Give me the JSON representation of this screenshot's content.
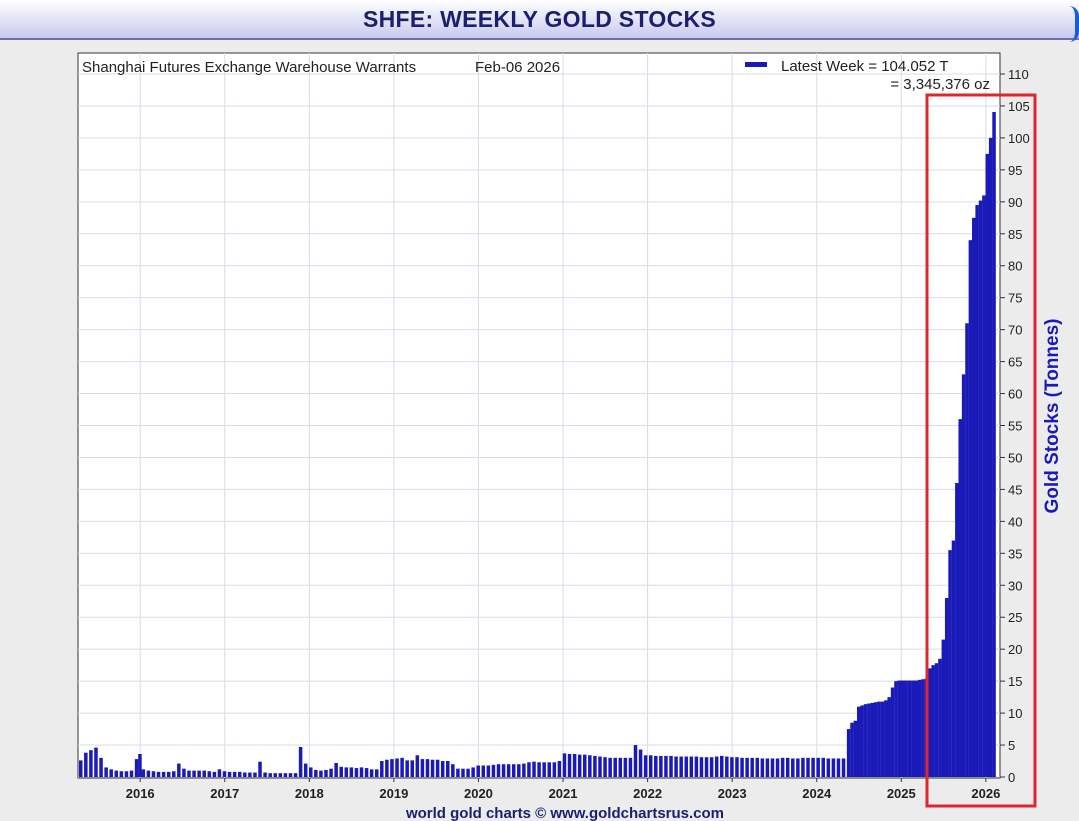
{
  "title": "SHFE: WEEKLY GOLD STOCKS",
  "subtitle": "Shanghai Futures Exchange Warehouse Warrants",
  "date": "Feb-06  2026",
  "legend": {
    "line1": "Latest Week = 104.052 T",
    "line2": "= 3,345,376 oz"
  },
  "footer": "world gold charts © www.goldchartsrus.com",
  "colors": {
    "bar": "#1a1ab8",
    "highlight": "#e0252d",
    "axis_text": "#222222",
    "ylabel": "#1a1ab8"
  },
  "chart_data": {
    "type": "bar",
    "ylabel": "Gold Stocks (Tonnes)",
    "xlabel": "",
    "ylim": [
      0,
      110
    ],
    "y_ticks": [
      0,
      5,
      10,
      15,
      20,
      25,
      30,
      35,
      40,
      45,
      50,
      55,
      60,
      65,
      70,
      75,
      80,
      85,
      90,
      95,
      100,
      105,
      110
    ],
    "x_ticks": [
      "2016",
      "2017",
      "2018",
      "2019",
      "2020",
      "2021",
      "2022",
      "2023",
      "2024",
      "2025",
      "2026"
    ],
    "x_range": [
      2015.3,
      2026.12
    ],
    "grid": true,
    "legend_position": "top-right",
    "series": [
      {
        "name": "Latest Week = 104.052 T",
        "points": [
          [
            2015.3,
            2.6
          ],
          [
            2015.36,
            3.8
          ],
          [
            2015.42,
            4.2
          ],
          [
            2015.48,
            4.6
          ],
          [
            2015.54,
            3.0
          ],
          [
            2015.6,
            1.5
          ],
          [
            2015.66,
            1.2
          ],
          [
            2015.72,
            1.0
          ],
          [
            2015.78,
            0.9
          ],
          [
            2015.84,
            0.9
          ],
          [
            2015.9,
            1.0
          ],
          [
            2015.96,
            2.8
          ],
          [
            2016.0,
            3.6
          ],
          [
            2016.04,
            1.2
          ],
          [
            2016.1,
            1.0
          ],
          [
            2016.16,
            0.9
          ],
          [
            2016.22,
            0.8
          ],
          [
            2016.28,
            0.8
          ],
          [
            2016.34,
            0.8
          ],
          [
            2016.4,
            0.9
          ],
          [
            2016.46,
            2.1
          ],
          [
            2016.52,
            1.3
          ],
          [
            2016.58,
            1.0
          ],
          [
            2016.64,
            1.0
          ],
          [
            2016.7,
            1.0
          ],
          [
            2016.76,
            1.0
          ],
          [
            2016.82,
            0.9
          ],
          [
            2016.88,
            0.8
          ],
          [
            2016.94,
            1.2
          ],
          [
            2017.0,
            0.9
          ],
          [
            2017.06,
            0.8
          ],
          [
            2017.12,
            0.8
          ],
          [
            2017.18,
            0.8
          ],
          [
            2017.24,
            0.7
          ],
          [
            2017.3,
            0.7
          ],
          [
            2017.36,
            0.7
          ],
          [
            2017.42,
            2.4
          ],
          [
            2017.48,
            0.7
          ],
          [
            2017.54,
            0.6
          ],
          [
            2017.6,
            0.6
          ],
          [
            2017.66,
            0.6
          ],
          [
            2017.72,
            0.6
          ],
          [
            2017.78,
            0.6
          ],
          [
            2017.84,
            0.6
          ],
          [
            2017.9,
            4.7
          ],
          [
            2017.96,
            2.1
          ],
          [
            2018.02,
            1.5
          ],
          [
            2018.08,
            1.1
          ],
          [
            2018.14,
            1.0
          ],
          [
            2018.2,
            1.1
          ],
          [
            2018.26,
            1.3
          ],
          [
            2018.32,
            2.2
          ],
          [
            2018.38,
            1.6
          ],
          [
            2018.44,
            1.5
          ],
          [
            2018.5,
            1.5
          ],
          [
            2018.56,
            1.4
          ],
          [
            2018.62,
            1.5
          ],
          [
            2018.68,
            1.4
          ],
          [
            2018.74,
            1.2
          ],
          [
            2018.8,
            1.2
          ],
          [
            2018.86,
            2.5
          ],
          [
            2018.92,
            2.7
          ],
          [
            2018.98,
            2.8
          ],
          [
            2019.04,
            2.9
          ],
          [
            2019.1,
            3.0
          ],
          [
            2019.16,
            2.6
          ],
          [
            2019.22,
            2.6
          ],
          [
            2019.28,
            3.4
          ],
          [
            2019.34,
            2.8
          ],
          [
            2019.4,
            2.8
          ],
          [
            2019.46,
            2.7
          ],
          [
            2019.52,
            2.7
          ],
          [
            2019.58,
            2.5
          ],
          [
            2019.64,
            2.5
          ],
          [
            2019.7,
            2.0
          ],
          [
            2019.76,
            1.3
          ],
          [
            2019.82,
            1.3
          ],
          [
            2019.88,
            1.3
          ],
          [
            2019.94,
            1.5
          ],
          [
            2020.0,
            1.8
          ],
          [
            2020.06,
            1.8
          ],
          [
            2020.12,
            1.8
          ],
          [
            2020.18,
            1.9
          ],
          [
            2020.24,
            2.0
          ],
          [
            2020.3,
            2.0
          ],
          [
            2020.36,
            2.0
          ],
          [
            2020.42,
            2.0
          ],
          [
            2020.48,
            2.0
          ],
          [
            2020.54,
            2.1
          ],
          [
            2020.6,
            2.3
          ],
          [
            2020.66,
            2.4
          ],
          [
            2020.72,
            2.3
          ],
          [
            2020.78,
            2.3
          ],
          [
            2020.84,
            2.3
          ],
          [
            2020.9,
            2.3
          ],
          [
            2020.96,
            2.5
          ],
          [
            2021.02,
            3.7
          ],
          [
            2021.08,
            3.6
          ],
          [
            2021.14,
            3.6
          ],
          [
            2021.2,
            3.5
          ],
          [
            2021.26,
            3.5
          ],
          [
            2021.32,
            3.4
          ],
          [
            2021.38,
            3.3
          ],
          [
            2021.44,
            3.2
          ],
          [
            2021.5,
            3.1
          ],
          [
            2021.56,
            3.0
          ],
          [
            2021.62,
            3.0
          ],
          [
            2021.68,
            3.0
          ],
          [
            2021.74,
            3.0
          ],
          [
            2021.8,
            3.0
          ],
          [
            2021.86,
            5.0
          ],
          [
            2021.92,
            4.3
          ],
          [
            2021.98,
            3.4
          ],
          [
            2022.04,
            3.4
          ],
          [
            2022.1,
            3.3
          ],
          [
            2022.16,
            3.3
          ],
          [
            2022.22,
            3.3
          ],
          [
            2022.28,
            3.3
          ],
          [
            2022.34,
            3.2
          ],
          [
            2022.4,
            3.2
          ],
          [
            2022.46,
            3.2
          ],
          [
            2022.52,
            3.2
          ],
          [
            2022.58,
            3.2
          ],
          [
            2022.64,
            3.1
          ],
          [
            2022.7,
            3.1
          ],
          [
            2022.76,
            3.1
          ],
          [
            2022.82,
            3.2
          ],
          [
            2022.88,
            3.3
          ],
          [
            2022.94,
            3.2
          ],
          [
            2023.0,
            3.1
          ],
          [
            2023.06,
            3.1
          ],
          [
            2023.12,
            3.0
          ],
          [
            2023.18,
            3.0
          ],
          [
            2023.24,
            3.0
          ],
          [
            2023.3,
            3.0
          ],
          [
            2023.36,
            2.9
          ],
          [
            2023.42,
            2.9
          ],
          [
            2023.48,
            2.9
          ],
          [
            2023.54,
            2.9
          ],
          [
            2023.6,
            3.0
          ],
          [
            2023.66,
            3.0
          ],
          [
            2023.72,
            2.9
          ],
          [
            2023.78,
            2.9
          ],
          [
            2023.84,
            3.0
          ],
          [
            2023.9,
            3.0
          ],
          [
            2023.96,
            3.0
          ],
          [
            2024.02,
            3.0
          ],
          [
            2024.08,
            3.0
          ],
          [
            2024.14,
            2.9
          ],
          [
            2024.2,
            2.9
          ],
          [
            2024.26,
            2.9
          ],
          [
            2024.32,
            2.9
          ],
          [
            2024.38,
            7.5
          ],
          [
            2024.42,
            8.5
          ],
          [
            2024.46,
            8.8
          ],
          [
            2024.5,
            11.0
          ],
          [
            2024.54,
            11.2
          ],
          [
            2024.58,
            11.4
          ],
          [
            2024.62,
            11.5
          ],
          [
            2024.66,
            11.6
          ],
          [
            2024.7,
            11.7
          ],
          [
            2024.74,
            11.8
          ],
          [
            2024.78,
            11.8
          ],
          [
            2024.82,
            12.0
          ],
          [
            2024.86,
            12.5
          ],
          [
            2024.9,
            14.0
          ],
          [
            2024.94,
            15.0
          ],
          [
            2024.98,
            15.1
          ],
          [
            2025.02,
            15.1
          ],
          [
            2025.06,
            15.1
          ],
          [
            2025.1,
            15.1
          ],
          [
            2025.14,
            15.1
          ],
          [
            2025.18,
            15.1
          ],
          [
            2025.22,
            15.2
          ],
          [
            2025.26,
            15.3
          ],
          [
            2025.3,
            15.4
          ],
          [
            2025.34,
            17.0
          ],
          [
            2025.38,
            17.5
          ],
          [
            2025.42,
            17.8
          ],
          [
            2025.46,
            18.5
          ],
          [
            2025.5,
            21.5
          ],
          [
            2025.54,
            28.0
          ],
          [
            2025.58,
            35.5
          ],
          [
            2025.62,
            37.0
          ],
          [
            2025.66,
            46.0
          ],
          [
            2025.7,
            56.0
          ],
          [
            2025.74,
            63.0
          ],
          [
            2025.78,
            71.0
          ],
          [
            2025.82,
            84.0
          ],
          [
            2025.86,
            87.5
          ],
          [
            2025.9,
            89.5
          ],
          [
            2025.94,
            90.2
          ],
          [
            2025.98,
            91.0
          ],
          [
            2026.02,
            97.5
          ],
          [
            2026.06,
            100.0
          ],
          [
            2026.1,
            104.052
          ]
        ]
      }
    ]
  }
}
